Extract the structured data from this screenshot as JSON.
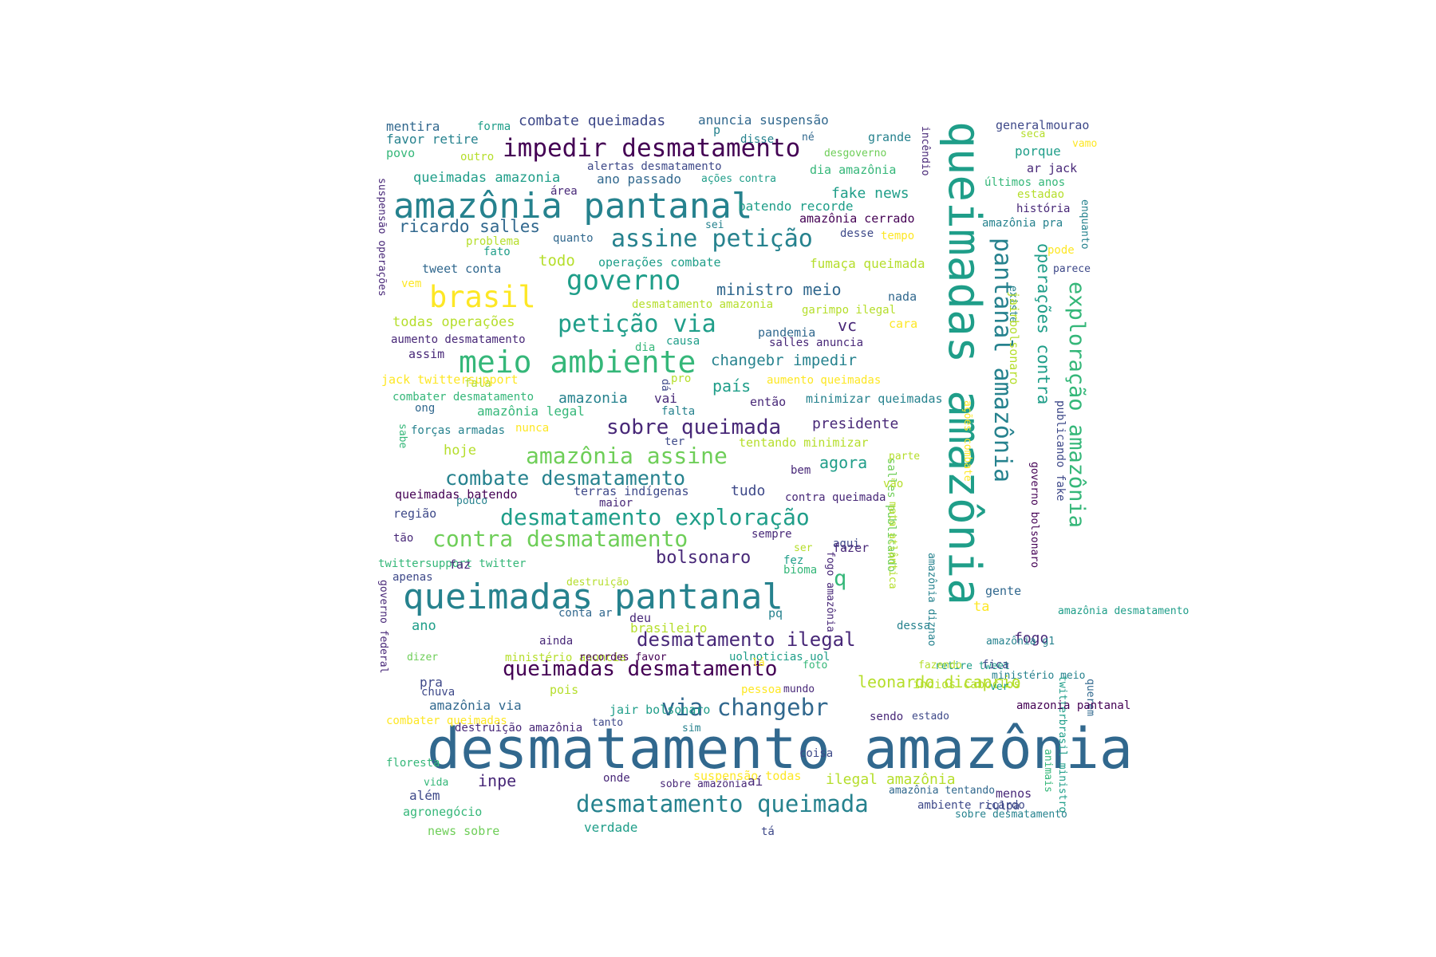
{
  "palette": {
    "c0": "#440154",
    "c1": "#482878",
    "c2": "#3e4989",
    "c3": "#31688e",
    "c4": "#26828e",
    "c5": "#1f9e89",
    "c6": "#35b779",
    "c7": "#6ece58",
    "c8": "#b5de2b",
    "c9": "#fde725"
  },
  "words": [
    {
      "t": "desmatamento amazônia",
      "c": "c3"
    },
    {
      "t": "queimadas amazônia",
      "c": "c5"
    },
    {
      "t": "amazônia pantanal",
      "c": "c4"
    },
    {
      "t": "queimadas pantanal",
      "c": "c4"
    },
    {
      "t": "meio ambiente",
      "c": "c6"
    },
    {
      "t": "impedir desmatamento",
      "c": "c0"
    },
    {
      "t": "brasil",
      "c": "c9"
    },
    {
      "t": "governo",
      "c": "c5"
    },
    {
      "t": "assine petição",
      "c": "c4"
    },
    {
      "t": "petição via",
      "c": "c5"
    },
    {
      "t": "pantanal amazônia",
      "c": "c4"
    },
    {
      "t": "exploração amazônia",
      "c": "c6"
    },
    {
      "t": "amazônia assine",
      "c": "c7"
    },
    {
      "t": "desmatamento exploração",
      "c": "c5"
    },
    {
      "t": "contra desmatamento",
      "c": "c7"
    },
    {
      "t": "desmatamento queimada",
      "c": "c4"
    },
    {
      "t": "via changebr",
      "c": "c3"
    },
    {
      "t": "sobre queimada",
      "c": "c1"
    },
    {
      "t": "combate desmatamento",
      "c": "c4"
    },
    {
      "t": "queimadas desmatamento",
      "c": "c0"
    },
    {
      "t": "desmatamento ilegal",
      "c": "c1"
    },
    {
      "t": "operações contra",
      "c": "c5"
    },
    {
      "t": "ricardo salles",
      "c": "c3"
    },
    {
      "t": "bolsonaro",
      "c": "c1"
    },
    {
      "t": "q",
      "c": "c6"
    },
    {
      "t": "combate queimadas",
      "c": "c2"
    },
    {
      "t": "anuncia suspensão",
      "c": "c3"
    },
    {
      "t": "mentira",
      "c": "c3"
    },
    {
      "t": "forma",
      "c": "c5"
    },
    {
      "t": "favor retire",
      "c": "c4"
    },
    {
      "t": "p",
      "c": "c4"
    },
    {
      "t": "disse",
      "c": "c4"
    },
    {
      "t": "né",
      "c": "c3"
    },
    {
      "t": "grande",
      "c": "c4"
    },
    {
      "t": "generalmourao",
      "c": "c2"
    },
    {
      "t": "povo",
      "c": "c6"
    },
    {
      "t": "outro",
      "c": "c8"
    },
    {
      "t": "desgoverno",
      "c": "c7"
    },
    {
      "t": "seca",
      "c": "c8"
    },
    {
      "t": "vamo",
      "c": "c9"
    },
    {
      "t": "porque",
      "c": "c5"
    },
    {
      "t": "alertas desmatamento",
      "c": "c2"
    },
    {
      "t": "queimadas amazonia",
      "c": "c5"
    },
    {
      "t": "ano passado",
      "c": "c3"
    },
    {
      "t": "ações contra",
      "c": "c5"
    },
    {
      "t": "dia amazônia",
      "c": "c6"
    },
    {
      "t": "ar jack",
      "c": "c1"
    },
    {
      "t": "área",
      "c": "c1"
    },
    {
      "t": "incêndio",
      "c": "c1"
    },
    {
      "t": "últimos anos",
      "c": "c6"
    },
    {
      "t": "estadao",
      "c": "c8"
    },
    {
      "t": "fake news",
      "c": "c5"
    },
    {
      "t": "batendo recorde",
      "c": "c5"
    },
    {
      "t": "amazônia cerrado",
      "c": "c0"
    },
    {
      "t": "história",
      "c": "c1"
    },
    {
      "t": "amazônia pra",
      "c": "c4"
    },
    {
      "t": "enquanto",
      "c": "c4"
    },
    {
      "t": "suspensão operações",
      "c": "c1"
    },
    {
      "t": "sei",
      "c": "c4"
    },
    {
      "t": "desse",
      "c": "c2"
    },
    {
      "t": "tempo",
      "c": "c9"
    },
    {
      "t": "problema",
      "c": "c8"
    },
    {
      "t": "quanto",
      "c": "c3"
    },
    {
      "t": "fato",
      "c": "c5"
    },
    {
      "t": "pode",
      "c": "c9"
    },
    {
      "t": "todo",
      "c": "c8"
    },
    {
      "t": "fumaça queimada",
      "c": "c8"
    },
    {
      "t": "tweet conta",
      "c": "c3"
    },
    {
      "t": "operações combate",
      "c": "c5"
    },
    {
      "t": "parece",
      "c": "c2"
    },
    {
      "t": "vem",
      "c": "c9"
    },
    {
      "t": "ministro meio",
      "c": "c3"
    },
    {
      "t": "garimpo ilegal",
      "c": "c8"
    },
    {
      "t": "nada",
      "c": "c3"
    },
    {
      "t": "existe",
      "c": "c4"
    },
    {
      "t": "desmatamento amazonia",
      "c": "c8"
    },
    {
      "t": "jairbolsonaro",
      "c": "c8"
    },
    {
      "t": "todas operações",
      "c": "c8"
    },
    {
      "t": "vc",
      "c": "c1"
    },
    {
      "t": "cara",
      "c": "c9"
    },
    {
      "t": "pandemia",
      "c": "c3"
    },
    {
      "t": "aumento desmatamento",
      "c": "c1"
    },
    {
      "t": "causa",
      "c": "c5"
    },
    {
      "t": "salles anuncia",
      "c": "c1"
    },
    {
      "t": "assim",
      "c": "c1"
    },
    {
      "t": "dia",
      "c": "c6"
    },
    {
      "t": "changebr impedir",
      "c": "c4"
    },
    {
      "t": "jack twittersupport",
      "c": "c9"
    },
    {
      "t": "dá",
      "c": "c2"
    },
    {
      "t": "pro",
      "c": "c8"
    },
    {
      "t": "aumento queimadas",
      "c": "c9"
    },
    {
      "t": "país",
      "c": "c5"
    },
    {
      "t": "fala",
      "c": "c8"
    },
    {
      "t": "combater desmatamento",
      "c": "c6"
    },
    {
      "t": "amazonia",
      "c": "c4"
    },
    {
      "t": "vai",
      "c": "c1"
    },
    {
      "t": "então",
      "c": "c1"
    },
    {
      "t": "minimizar queimadas",
      "c": "c4"
    },
    {
      "t": "publicando fake",
      "c": "c2"
    },
    {
      "t": "ong",
      "c": "c3"
    },
    {
      "t": "amazônia legal",
      "c": "c6"
    },
    {
      "t": "falta",
      "c": "c4"
    },
    {
      "t": "sabe",
      "c": "c6"
    },
    {
      "t": "presidente",
      "c": "c1"
    },
    {
      "t": "forças armadas",
      "c": "c4"
    },
    {
      "t": "nunca",
      "c": "c9"
    },
    {
      "t": "ações combate",
      "c": "c9"
    },
    {
      "t": "ter",
      "c": "c2"
    },
    {
      "t": "tentando minimizar",
      "c": "c8"
    },
    {
      "t": "governo bolsonaro",
      "c": "c0"
    },
    {
      "t": "hoje",
      "c": "c8"
    },
    {
      "t": "agora",
      "c": "c5"
    },
    {
      "t": "parte",
      "c": "c8"
    },
    {
      "t": "bem",
      "c": "c1"
    },
    {
      "t": "salles publicando",
      "c": "c7"
    },
    {
      "t": "vão",
      "c": "c8"
    },
    {
      "t": "tudo",
      "c": "c2"
    },
    {
      "t": "terras indígenas",
      "c": "c2"
    },
    {
      "t": "queimadas batendo",
      "c": "c0"
    },
    {
      "t": "contra queimada",
      "c": "c1"
    },
    {
      "t": "pouco",
      "c": "c4"
    },
    {
      "t": "maior",
      "c": "c1"
    },
    {
      "t": "região",
      "c": "c2"
    },
    {
      "t": "mata atlântica",
      "c": "c8"
    },
    {
      "t": "tão",
      "c": "c1"
    },
    {
      "t": "sempre",
      "c": "c1"
    },
    {
      "t": "ser",
      "c": "c8"
    },
    {
      "t": "aqui",
      "c": "c2"
    },
    {
      "t": "fazer",
      "c": "c1"
    },
    {
      "t": "twittersupport twitter",
      "c": "c6"
    },
    {
      "t": "faz",
      "c": "c1"
    },
    {
      "t": "fez",
      "c": "c5"
    },
    {
      "t": "apenas",
      "c": "c2"
    },
    {
      "t": "bioma",
      "c": "c6"
    },
    {
      "t": "amazônia diznao",
      "c": "c4"
    },
    {
      "t": "fogo amazônia",
      "c": "c1"
    },
    {
      "t": "destruição",
      "c": "c8"
    },
    {
      "t": "gente",
      "c": "c3"
    },
    {
      "t": "governo federal",
      "c": "c1"
    },
    {
      "t": "ta",
      "c": "c9"
    },
    {
      "t": "pq",
      "c": "c4"
    },
    {
      "t": "amazônia desmatamento",
      "c": "c5"
    },
    {
      "t": "conta ar",
      "c": "c3"
    },
    {
      "t": "deu",
      "c": "c1"
    },
    {
      "t": "dessa",
      "c": "c4"
    },
    {
      "t": "ano",
      "c": "c5"
    },
    {
      "t": "brasileiro",
      "c": "c8"
    },
    {
      "t": "ainda",
      "c": "c1"
    },
    {
      "t": "fogo",
      "c": "c1"
    },
    {
      "t": "amazônia g1",
      "c": "c4"
    },
    {
      "t": "dizer",
      "c": "c7"
    },
    {
      "t": "ministério anuncia",
      "c": "c8"
    },
    {
      "t": "recordes favor",
      "c": "c0"
    },
    {
      "t": "uolnoticias uol",
      "c": "c5"
    },
    {
      "t": "foto",
      "c": "c6"
    },
    {
      "t": "retire tweet",
      "c": "c5"
    },
    {
      "t": "fazendo",
      "c": "c8"
    },
    {
      "t": "fica",
      "c": "c2"
    },
    {
      "t": "pra",
      "c": "c2"
    },
    {
      "t": "lá",
      "c": "c9"
    },
    {
      "t": "ministério meio",
      "c": "c4"
    },
    {
      "t": "leonardo dicaprio",
      "c": "c8"
    },
    {
      "t": "índios caboclos",
      "c": "c8"
    },
    {
      "t": "twitterbrasil ministro",
      "c": "c5"
    },
    {
      "t": "querem",
      "c": "c3"
    },
    {
      "t": "chuva",
      "c": "c2"
    },
    {
      "t": "pois",
      "c": "c8"
    },
    {
      "t": "pessoa",
      "c": "c9"
    },
    {
      "t": "mundo",
      "c": "c1"
    },
    {
      "t": "ver",
      "c": "c5"
    },
    {
      "t": "amazônia via",
      "c": "c3"
    },
    {
      "t": "jair bolsonaro",
      "c": "c5"
    },
    {
      "t": "sendo",
      "c": "c1"
    },
    {
      "t": "estado",
      "c": "c2"
    },
    {
      "t": "amazonia pantanal",
      "c": "c0"
    },
    {
      "t": "combater queimadas",
      "c": "c9"
    },
    {
      "t": "destruição amazônia",
      "c": "c1"
    },
    {
      "t": "tanto",
      "c": "c2"
    },
    {
      "t": "sim",
      "c": "c4"
    },
    {
      "t": "animais",
      "c": "c6"
    },
    {
      "t": "floresta",
      "c": "c6"
    },
    {
      "t": "coisa",
      "c": "c2"
    },
    {
      "t": "vida",
      "c": "c6"
    },
    {
      "t": "inpe",
      "c": "c1"
    },
    {
      "t": "onde",
      "c": "c1"
    },
    {
      "t": "sobre amazônia",
      "c": "c1"
    },
    {
      "t": "suspensão todas",
      "c": "c9"
    },
    {
      "t": "aí",
      "c": "c1"
    },
    {
      "t": "ilegal amazônia",
      "c": "c8"
    },
    {
      "t": "amazônia tentando",
      "c": "c3"
    },
    {
      "t": "menos",
      "c": "c1"
    },
    {
      "t": "além",
      "c": "c2"
    },
    {
      "t": "agronegócio",
      "c": "c6"
    },
    {
      "t": "ambiente ricardo",
      "c": "c2"
    },
    {
      "t": "sobre desmatamento",
      "c": "c4"
    },
    {
      "t": "culpa",
      "c": "c2"
    },
    {
      "t": "news sobre",
      "c": "c7"
    },
    {
      "t": "verdade",
      "c": "c5"
    },
    {
      "t": "tá",
      "c": "c2"
    }
  ]
}
